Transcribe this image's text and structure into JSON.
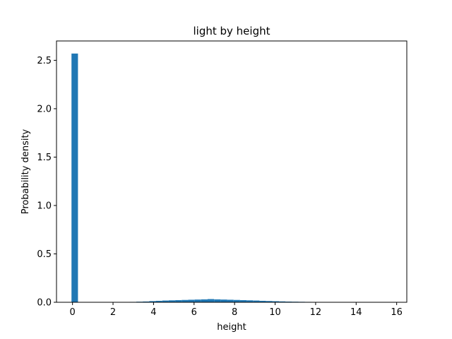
{
  "chart_data": {
    "type": "bar",
    "title": "light by height",
    "xlabel": "height",
    "ylabel": "Probability density",
    "xlim": [
      -0.79,
      16.5
    ],
    "ylim": [
      0,
      2.7
    ],
    "grid": false,
    "bar_color": "#1f77b4",
    "bin_width": 0.32,
    "bin_starts": [
      -0.05,
      0.27,
      0.59,
      0.91,
      1.23,
      1.55,
      1.87,
      2.19,
      2.51,
      2.83,
      3.15,
      3.47,
      3.79,
      4.11,
      4.43,
      4.75,
      5.07,
      5.39,
      5.71,
      6.03,
      6.35,
      6.67,
      6.99,
      7.31,
      7.63,
      7.95,
      8.27,
      8.59,
      8.91,
      9.23,
      9.55,
      9.87,
      10.19,
      10.51,
      10.83,
      11.15,
      11.47,
      11.79,
      12.11,
      12.43,
      12.75,
      13.07,
      13.39,
      13.71,
      14.03,
      14.35,
      14.67,
      14.99,
      15.31,
      15.63
    ],
    "densities": [
      2.57,
      0,
      0,
      0,
      0,
      0,
      0,
      0,
      0,
      0.004,
      0.006,
      0.008,
      0.012,
      0.015,
      0.018,
      0.02,
      0.022,
      0.024,
      0.026,
      0.028,
      0.03,
      0.033,
      0.03,
      0.028,
      0.026,
      0.024,
      0.022,
      0.02,
      0.018,
      0.015,
      0.013,
      0.011,
      0.009,
      0.007,
      0.006,
      0.005,
      0.004,
      0.003,
      0.002,
      0.001,
      0.0005,
      0.0003,
      0,
      0,
      0,
      0,
      0,
      0,
      0,
      0
    ],
    "x_ticks": [
      0,
      2,
      4,
      6,
      8,
      10,
      12,
      14,
      16
    ],
    "x_tick_labels": [
      "0",
      "2",
      "4",
      "6",
      "8",
      "10",
      "12",
      "14",
      "16"
    ],
    "y_ticks": [
      0.0,
      0.5,
      1.0,
      1.5,
      2.0,
      2.5
    ],
    "y_tick_labels": [
      "0.0",
      "0.5",
      "1.0",
      "1.5",
      "2.0",
      "2.5"
    ]
  }
}
